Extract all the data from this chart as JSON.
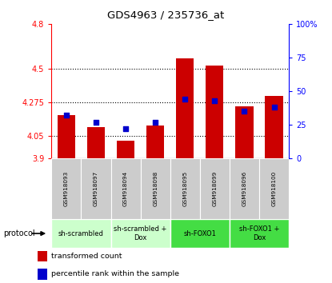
{
  "title": "GDS4963 / 235736_at",
  "samples": [
    "GSM918093",
    "GSM918097",
    "GSM918094",
    "GSM918098",
    "GSM918095",
    "GSM918099",
    "GSM918096",
    "GSM918100"
  ],
  "transformed_counts": [
    4.19,
    4.11,
    4.02,
    4.12,
    4.57,
    4.52,
    4.25,
    4.32
  ],
  "percentile_ranks": [
    32,
    27,
    22,
    27,
    44,
    43,
    35,
    38
  ],
  "ylim_left": [
    3.9,
    4.8
  ],
  "yticks_left": [
    3.9,
    4.05,
    4.275,
    4.5,
    4.8
  ],
  "ytick_labels_left": [
    "3.9",
    "4.05",
    "4.275",
    "4.5",
    "4.8"
  ],
  "ylim_right": [
    0,
    100
  ],
  "yticks_right": [
    0,
    25,
    50,
    75,
    100
  ],
  "ytick_labels_right": [
    "0",
    "25",
    "50",
    "75",
    "100%"
  ],
  "bar_color": "#cc0000",
  "dot_color": "#0000cc",
  "bar_bottom": 3.9,
  "grid_lines": [
    4.05,
    4.275,
    4.5
  ],
  "protocol_groups": [
    {
      "label": "sh-scrambled",
      "start": 0,
      "end": 1,
      "color": "#ccffcc"
    },
    {
      "label": "sh-scrambled +\nDox",
      "start": 2,
      "end": 3,
      "color": "#ccffcc"
    },
    {
      "label": "sh-FOXO1",
      "start": 4,
      "end": 5,
      "color": "#44dd44"
    },
    {
      "label": "sh-FOXO1 +\nDox",
      "start": 6,
      "end": 7,
      "color": "#44dd44"
    }
  ],
  "sample_box_color": "#cccccc",
  "legend_bar_label": "transformed count",
  "legend_dot_label": "percentile rank within the sample",
  "protocol_text": "protocol"
}
